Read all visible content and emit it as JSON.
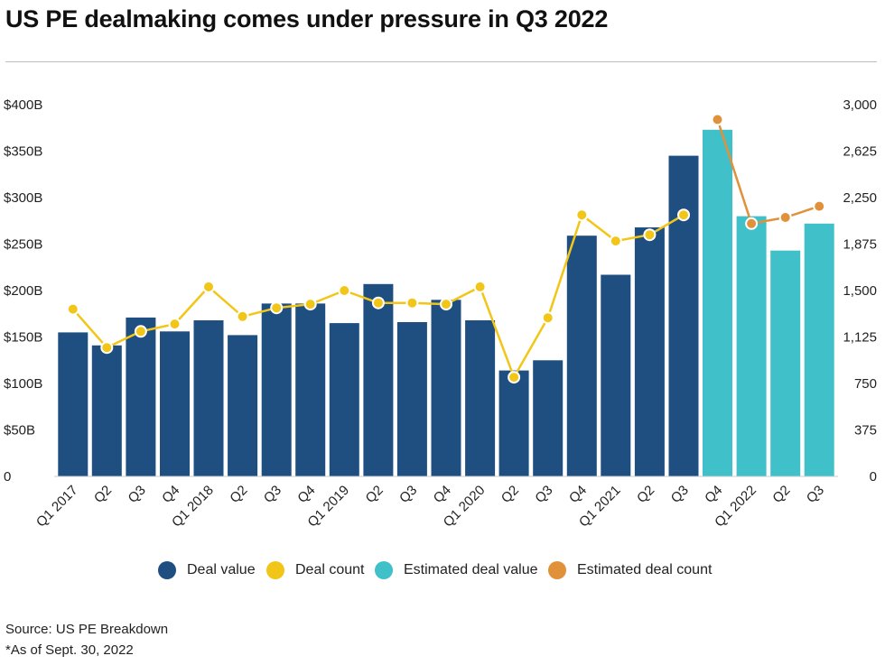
{
  "chart_data": {
    "type": "bar+line",
    "title": "US PE dealmaking comes under pressure in Q3 2022",
    "categories": [
      "Q1 2017",
      "Q2",
      "Q3",
      "Q4",
      "Q1 2018",
      "Q2",
      "Q3",
      "Q4",
      "Q1 2019",
      "Q2",
      "Q3",
      "Q4",
      "Q1 2020",
      "Q2",
      "Q3",
      "Q4",
      "Q1 2021",
      "Q2",
      "Q3",
      "Q4",
      "Q1 2022",
      "Q2",
      "Q3"
    ],
    "left_axis": {
      "ylim": [
        0,
        400
      ],
      "ticks": [
        0,
        50,
        100,
        150,
        200,
        250,
        300,
        350,
        400
      ],
      "tick_labels": [
        "0",
        "$50B",
        "$100B",
        "$150B",
        "$200B",
        "$250B",
        "$300B",
        "$350B",
        "$400B"
      ]
    },
    "right_axis": {
      "ylim": [
        0,
        3000
      ],
      "ticks": [
        0,
        375,
        750,
        1125,
        1500,
        1875,
        2250,
        2625,
        3000
      ],
      "tick_labels": [
        "0",
        "375",
        "750",
        "1,125",
        "1,500",
        "1,875",
        "2,250",
        "2,625",
        "3,000"
      ]
    },
    "series": [
      {
        "name": "Deal value",
        "kind": "bar",
        "axis": "left",
        "color": "#1f4e80",
        "values": [
          155,
          141,
          171,
          156,
          168,
          152,
          186,
          186,
          165,
          207,
          166,
          190,
          168,
          114,
          125,
          259,
          217,
          268,
          345,
          null,
          null,
          null,
          null
        ]
      },
      {
        "name": "Estimated deal value",
        "kind": "bar",
        "axis": "left",
        "color": "#40c0c8",
        "values": [
          null,
          null,
          null,
          null,
          null,
          null,
          null,
          null,
          null,
          null,
          null,
          null,
          null,
          null,
          null,
          null,
          null,
          null,
          null,
          373,
          280,
          243,
          272
        ]
      },
      {
        "name": "Deal count",
        "kind": "line",
        "axis": "right",
        "color": "#f2c619",
        "values": [
          1350,
          1040,
          1170,
          1230,
          1530,
          1290,
          1360,
          1390,
          1500,
          1400,
          1400,
          1390,
          1530,
          800,
          1280,
          2110,
          1900,
          1950,
          2110,
          null,
          null,
          null,
          null
        ]
      },
      {
        "name": "Estimated deal count",
        "kind": "line",
        "axis": "right",
        "color": "#e0913a",
        "values": [
          null,
          null,
          null,
          null,
          null,
          null,
          null,
          null,
          null,
          null,
          null,
          null,
          null,
          null,
          null,
          null,
          null,
          null,
          null,
          2880,
          2040,
          2090,
          2180
        ]
      }
    ],
    "legend_position": "bottom-center",
    "grid": false
  },
  "legend": [
    {
      "label": "Deal value",
      "color": "#1f4e80"
    },
    {
      "label": "Deal count",
      "color": "#f2c619"
    },
    {
      "label": "Estimated deal value",
      "color": "#40c0c8"
    },
    {
      "label": "Estimated deal count",
      "color": "#e0913a"
    }
  ],
  "footer": {
    "source": "Source: US PE Breakdown",
    "note": "*As of Sept. 30, 2022"
  }
}
